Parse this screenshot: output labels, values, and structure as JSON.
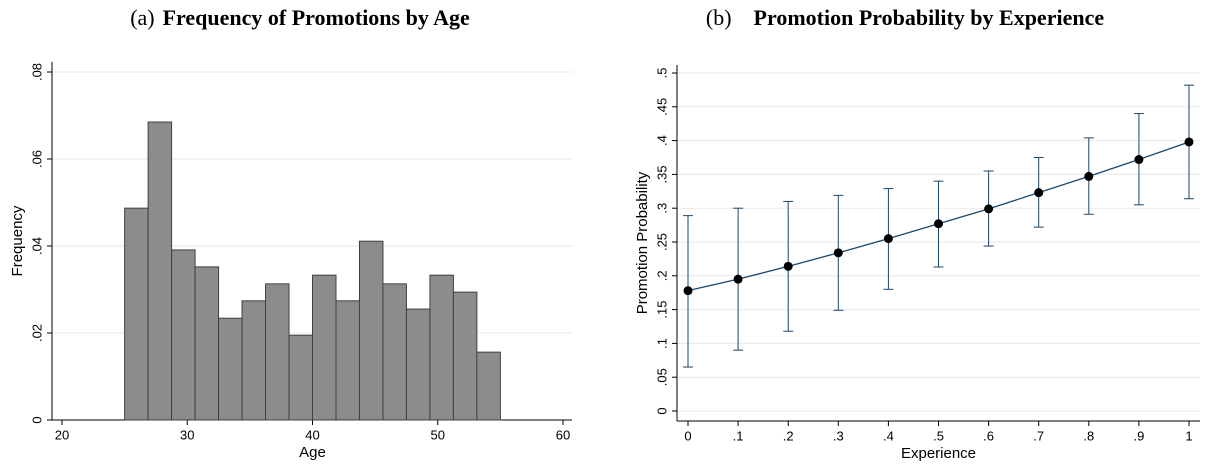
{
  "chart_data": [
    {
      "type": "histogram",
      "panel": "(a)",
      "title": "Frequency of Promotions by Age",
      "x_label": "Age",
      "y_label": "Frequency",
      "bins": [
        25,
        26.875,
        28.75,
        30.625,
        32.5,
        34.375,
        36.25,
        38.125,
        40,
        41.875,
        43.75,
        45.625,
        47.5,
        49.375,
        51.25,
        53.125,
        55
      ],
      "values": [
        0.0487,
        0.0685,
        0.0391,
        0.0352,
        0.0234,
        0.0274,
        0.0313,
        0.0195,
        0.0333,
        0.0274,
        0.0411,
        0.0313,
        0.0255,
        0.0333,
        0.0294,
        0.0156
      ],
      "color": "#8c8c8c",
      "xlim": [
        20,
        60
      ],
      "xticks": [
        20,
        30,
        40,
        50,
        60
      ],
      "ylim": [
        0,
        0.08
      ],
      "yticks": [
        0,
        {
          "value": 0.02,
          "label": ".02"
        },
        {
          "value": 0.04,
          "label": ".04"
        },
        {
          "value": 0.06,
          "label": ".06"
        },
        {
          "value": 0.08,
          "label": ".08"
        }
      ],
      "grid": true
    },
    {
      "type": "errorline",
      "panel": "(b)",
      "title": "Promotion Probability by Experience",
      "x_label": "Experience",
      "y_label": "Promotion Probability",
      "x": [
        0,
        0.1,
        0.2,
        0.3,
        0.4,
        0.5,
        0.6,
        0.7,
        0.8,
        0.9,
        1
      ],
      "values": [
        0.178,
        0.195,
        0.214,
        0.234,
        0.255,
        0.277,
        0.299,
        0.323,
        0.347,
        0.372,
        0.398
      ],
      "lower": [
        0.065,
        0.09,
        0.118,
        0.149,
        0.18,
        0.213,
        0.244,
        0.272,
        0.291,
        0.305,
        0.314
      ],
      "upper": [
        0.289,
        0.3,
        0.31,
        0.319,
        0.329,
        0.34,
        0.355,
        0.375,
        0.404,
        0.44,
        0.482
      ],
      "color": "#1a476f",
      "xlim": [
        0,
        1
      ],
      "xticks": [
        0,
        {
          "value": 0.1,
          "label": ".1"
        },
        {
          "value": 0.2,
          "label": ".2"
        },
        {
          "value": 0.3,
          "label": ".3"
        },
        {
          "value": 0.4,
          "label": ".4"
        },
        {
          "value": 0.5,
          "label": ".5"
        },
        {
          "value": 0.6,
          "label": ".6"
        },
        {
          "value": 0.7,
          "label": ".7"
        },
        {
          "value": 0.8,
          "label": ".8"
        },
        {
          "value": 0.9,
          "label": ".9"
        },
        1
      ],
      "ylim": [
        0,
        0.5
      ],
      "yticks": [
        0,
        {
          "value": 0.05,
          "label": ".05"
        },
        {
          "value": 0.1,
          "label": ".1"
        },
        {
          "value": 0.15,
          "label": ".15"
        },
        {
          "value": 0.2,
          "label": ".2"
        },
        {
          "value": 0.25,
          "label": ".25"
        },
        {
          "value": 0.3,
          "label": ".3"
        },
        {
          "value": 0.35,
          "label": ".35"
        },
        {
          "value": 0.4,
          "label": ".4"
        },
        {
          "value": 0.45,
          "label": ".45"
        },
        {
          "value": 0.5,
          "label": ".5"
        }
      ],
      "grid": true
    }
  ]
}
